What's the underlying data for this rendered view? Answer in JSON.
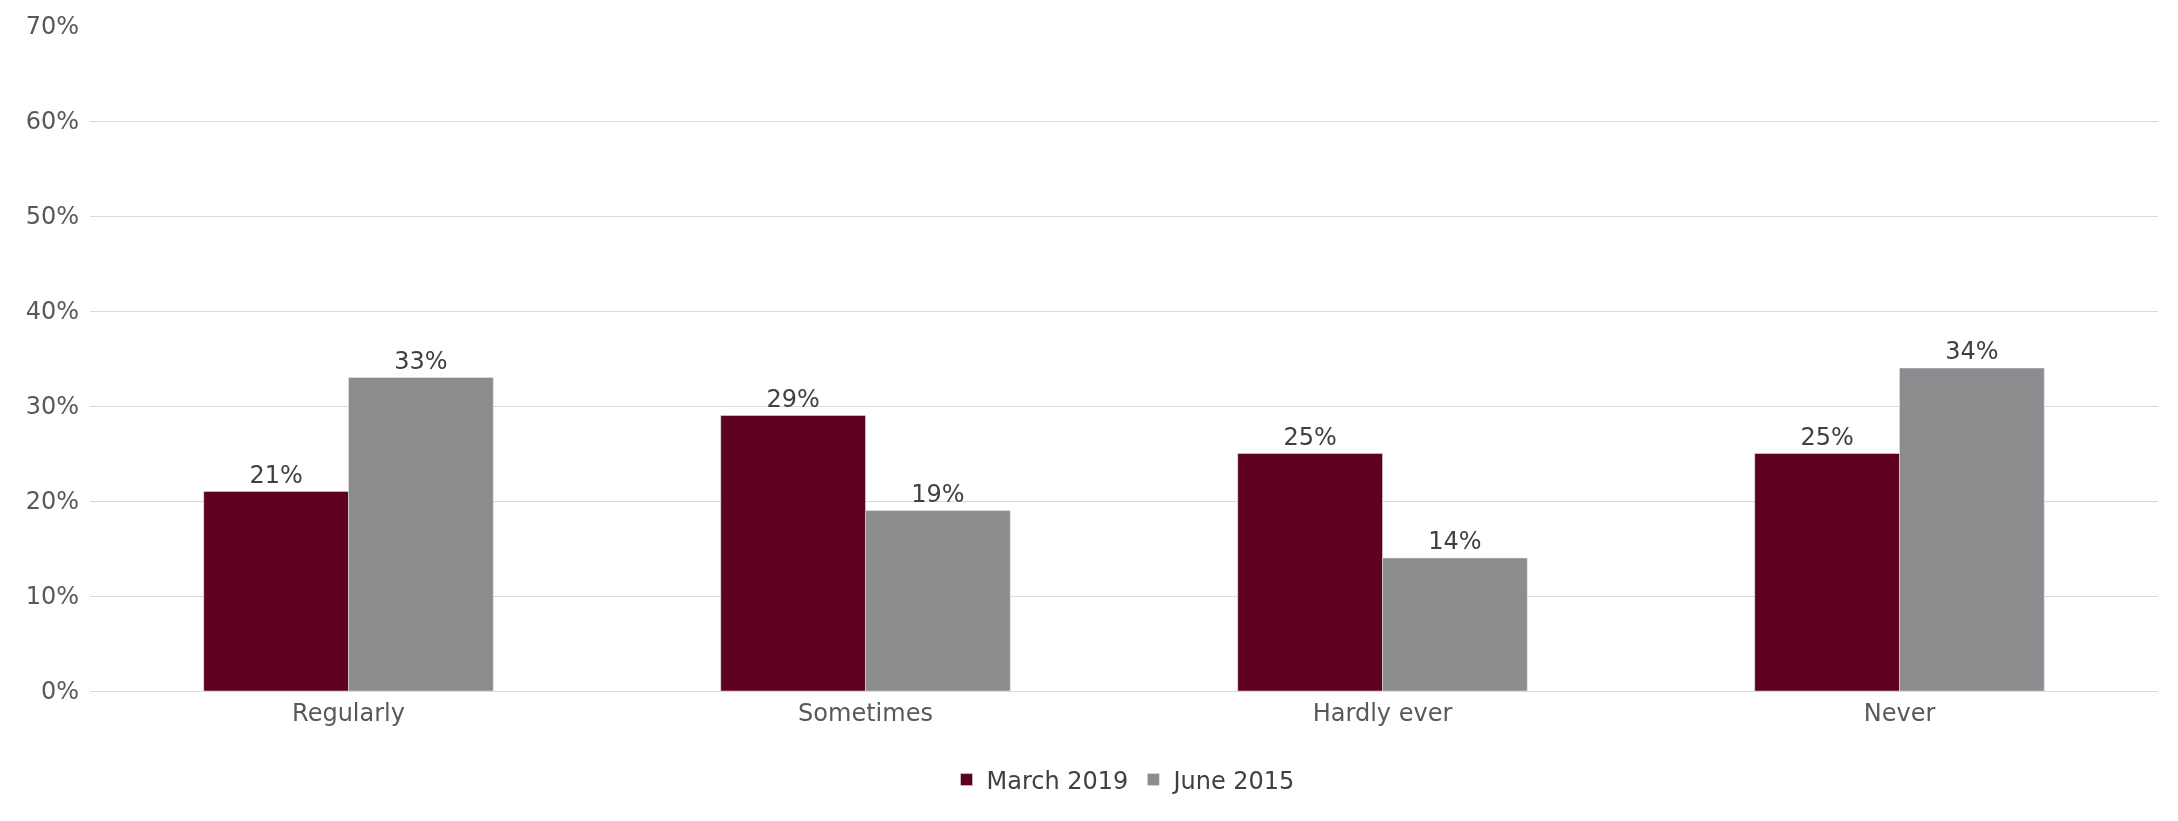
{
  "chart_data": {
    "type": "bar",
    "categories": [
      "Regularly",
      "Sometimes",
      "Hardly ever",
      "Never"
    ],
    "series": [
      {
        "name": "March 2019",
        "color": "#5e001f",
        "values": [
          21,
          29,
          25,
          25
        ],
        "value_labels": [
          "21%",
          "29%",
          "25%",
          "25%"
        ]
      },
      {
        "name": "June 2015",
        "color": "#8c8c8e",
        "values": [
          33,
          19,
          14,
          34
        ],
        "value_labels": [
          "33%",
          "19%",
          "14%",
          "34%"
        ]
      }
    ],
    "ylim": [
      0,
      70
    ],
    "yticks": [
      {
        "value": 0,
        "label": "0%"
      },
      {
        "value": 10,
        "label": "10%"
      },
      {
        "value": 20,
        "label": "20%"
      },
      {
        "value": 30,
        "label": "30%"
      },
      {
        "value": 40,
        "label": "40%"
      },
      {
        "value": 50,
        "label": "50%"
      },
      {
        "value": 60,
        "label": "60%"
      },
      {
        "value": 70,
        "label": "70%"
      }
    ],
    "grid": "y",
    "legend": "bottom"
  }
}
